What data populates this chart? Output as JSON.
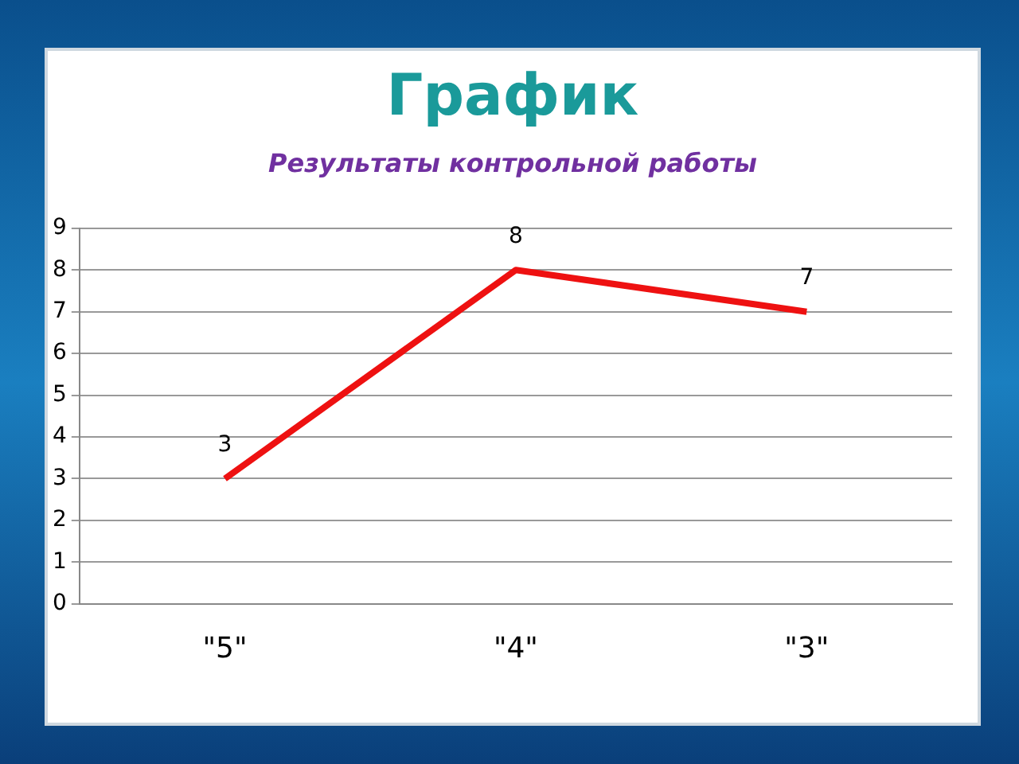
{
  "chart_data": {
    "type": "line",
    "title": "График",
    "subtitle": "Результаты контрольной работы",
    "categories": [
      "\"5\"",
      "\"4\"",
      "\"3\""
    ],
    "series": [
      {
        "color": "#ee1111",
        "values": [
          3,
          8,
          7
        ]
      }
    ],
    "ylim": [
      0,
      9
    ],
    "yticks": [
      0,
      1,
      2,
      3,
      4,
      5,
      6,
      7,
      8,
      9
    ],
    "grid": "y",
    "legend": false,
    "marker": "none",
    "data_labels": true
  }
}
